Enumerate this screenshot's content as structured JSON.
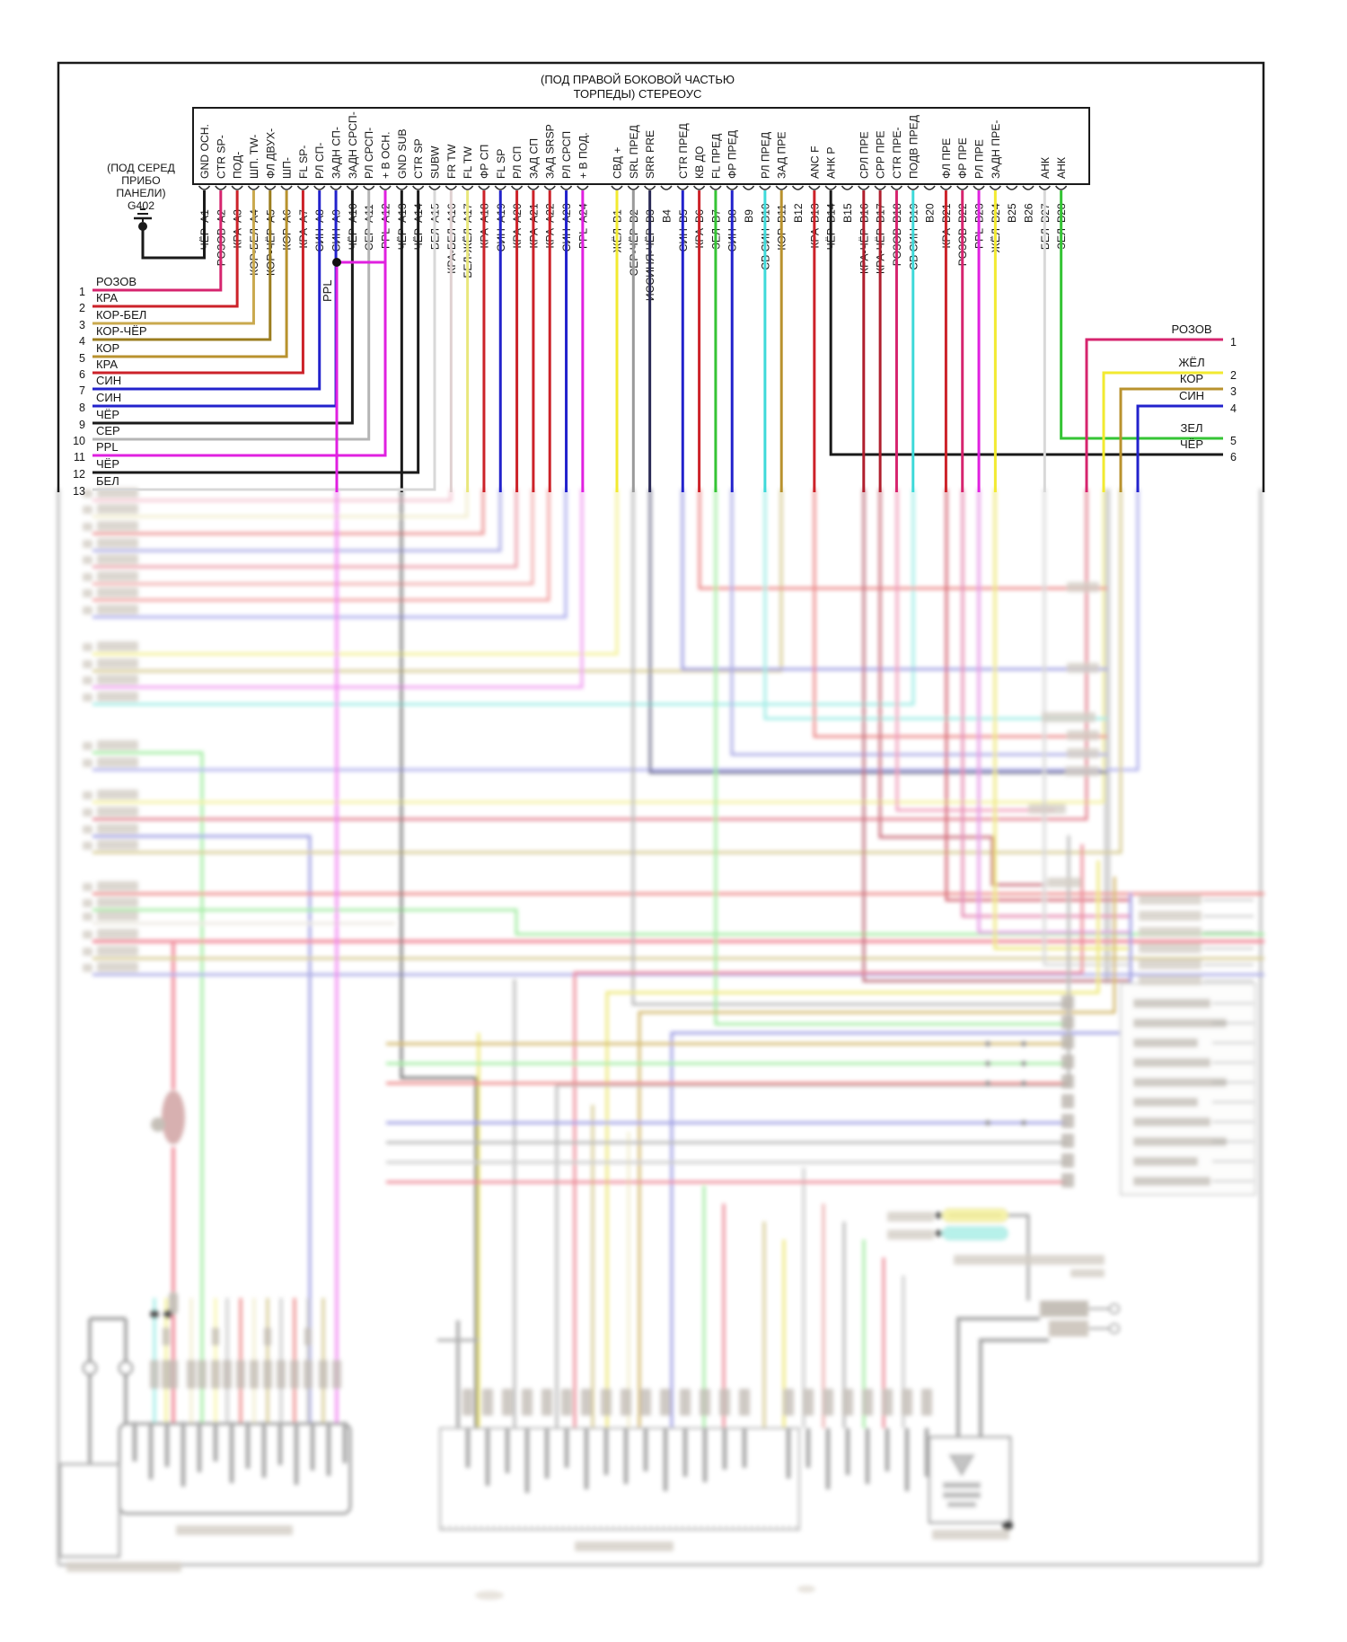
{
  "header": {
    "line1": "(ПОД ПРАВОЙ БОКОВОЙ ЧАСТЬЮ",
    "line2": "ТОРПЕДЫ) СТЕРЕОУС"
  },
  "ground_module": {
    "lines": [
      "(ПОД СЕРЕД",
      "ПРИБО",
      "ПАНЕЛИ)",
      "G402"
    ]
  },
  "ppl_branch_label": "PPL",
  "palette": {
    "ЧЁР": "#1a1a1a",
    "РОЗОВ": "#d6246e",
    "КРА": "#cc2229",
    "КОР-БЕЛ": "#c9a94e",
    "КОР-ЧЁР": "#9b7d1f",
    "КОР": "#b8922e",
    "СИН": "#2222cc",
    "СЕР": "#b5b5b5",
    "PPL": "#e020e0",
    "БЕЛ": "#d8d8d8",
    "КРА-БЕЛ": "#dfd0d0",
    "БЕЛ-ЖЁЛ": "#e9e77c",
    "ЖЁЛ": "#f2ea30",
    "СЕР-ЧЁР": "#9a9a9a",
    "ИССИНЯ-ЧЁР": "#2a2a55",
    "ЗЕЛ": "#35c435",
    "СВ СИН": "#3fd9d9",
    "КРА-ЧЁР": "#b01f2e"
  },
  "connector": {
    "a_pins": [
      {
        "id": "A1",
        "signal": "GND ОСН.",
        "wire": "ЧЁР"
      },
      {
        "id": "A2",
        "signal": "CTR SP-",
        "wire": "РОЗОВ"
      },
      {
        "id": "A3",
        "signal": "ПОД-",
        "wire": "КРА"
      },
      {
        "id": "A4",
        "signal": "ШП. TW-",
        "wire": "КОР-БЕЛ"
      },
      {
        "id": "A5",
        "signal": "ФЛ ДВУХ-",
        "wire": "КОР-ЧЁР"
      },
      {
        "id": "A6",
        "signal": "ШП-",
        "wire": "КОР"
      },
      {
        "id": "A7",
        "signal": "FL SP-",
        "wire": "КРА"
      },
      {
        "id": "A8",
        "signal": "РЛ СП-",
        "wire": "СИН"
      },
      {
        "id": "A9",
        "signal": "ЗАДН СП-",
        "wire": "СИН"
      },
      {
        "id": "A10",
        "signal": "ЗАДН СРСП-",
        "wire": "ЧЁР"
      },
      {
        "id": "A11",
        "signal": "РЛ СРСП-",
        "wire": "СЕР"
      },
      {
        "id": "A12",
        "signal": "+ В ОСН.",
        "wire": "PPL"
      },
      {
        "id": "A13",
        "signal": "GND SUB",
        "wire": "ЧЁР"
      },
      {
        "id": "A14",
        "signal": "CTR SP",
        "wire": "ЧЁР"
      },
      {
        "id": "A15",
        "signal": "SUBW",
        "wire": "БЕЛ"
      },
      {
        "id": "A16",
        "signal": "FR TW",
        "wire": "КРА-БЕЛ"
      },
      {
        "id": "A17",
        "signal": "FL TW",
        "wire": "БЕЛ-ЖЁЛ"
      },
      {
        "id": "A18",
        "signal": "ФР СП",
        "wire": "КРА"
      },
      {
        "id": "A19",
        "signal": "FL SP",
        "wire": "СИН"
      },
      {
        "id": "A20",
        "signal": "РЛ СП",
        "wire": "КРА"
      },
      {
        "id": "A21",
        "signal": "ЗАД СП",
        "wire": "КРА"
      },
      {
        "id": "A22",
        "signal": "ЗАД SRSP",
        "wire": "КРА"
      },
      {
        "id": "A23",
        "signal": "РЛ СРСП",
        "wire": "СИН"
      },
      {
        "id": "A24",
        "signal": "+ В ПОД.",
        "wire": "PPL"
      }
    ],
    "b_pins": [
      {
        "id": "B1",
        "signal": "СВД +",
        "wire": "ЖЁЛ"
      },
      {
        "id": "B2",
        "signal": "SRL ПРЕД",
        "wire": "СЕР-ЧЁР"
      },
      {
        "id": "B3",
        "signal": "SRR PRE",
        "wire": "ИССИНЯ-ЧЁР"
      },
      {
        "id": "B4",
        "signal": "",
        "wire": ""
      },
      {
        "id": "B5",
        "signal": "CTR ПРЕД",
        "wire": "СИН"
      },
      {
        "id": "B6",
        "signal": "КВ ДО",
        "wire": "КРА"
      },
      {
        "id": "B7",
        "signal": "FL ПРЕД",
        "wire": "ЗЕЛ"
      },
      {
        "id": "B8",
        "signal": "ФР ПРЕД",
        "wire": "СИН"
      },
      {
        "id": "B9",
        "signal": "",
        "wire": ""
      },
      {
        "id": "B10",
        "signal": "РЛ ПРЕД",
        "wire": "СВ СИН"
      },
      {
        "id": "B11",
        "signal": "ЗАД ПРЕ",
        "wire": "КОР"
      },
      {
        "id": "B12",
        "signal": "",
        "wire": ""
      },
      {
        "id": "B13",
        "signal": "ANC F",
        "wire": "КРА"
      },
      {
        "id": "B14",
        "signal": "АНК Р",
        "wire": "ЧЁР"
      },
      {
        "id": "B15",
        "signal": "",
        "wire": ""
      },
      {
        "id": "B16",
        "signal": "СРЛ ПРЕ",
        "wire": "КРА-ЧЁР"
      },
      {
        "id": "B17",
        "signal": "СРР ПРЕ",
        "wire": "КРА-ЧЁР"
      },
      {
        "id": "B18",
        "signal": "CTR ПРЕ-",
        "wire": "РОЗОВ"
      },
      {
        "id": "B19",
        "signal": "ПОДВ ПРЕД",
        "wire": "СВ СИН"
      },
      {
        "id": "B20",
        "signal": "",
        "wire": ""
      },
      {
        "id": "B21",
        "signal": "ФЛ ПРЕ",
        "wire": "КРА"
      },
      {
        "id": "B22",
        "signal": "ФР ПРЕ",
        "wire": "РОЗОВ"
      },
      {
        "id": "B23",
        "signal": "РЛ ПРЕ",
        "wire": "PPL"
      },
      {
        "id": "B24",
        "signal": "ЗАДН ПРЕ-",
        "wire": "ЖЁЛ"
      },
      {
        "id": "B25",
        "signal": "",
        "wire": ""
      },
      {
        "id": "B26",
        "signal": "",
        "wire": ""
      },
      {
        "id": "B27",
        "signal": "АНК",
        "wire": "БЕЛ"
      },
      {
        "id": "B28",
        "signal": "АНК",
        "wire": "ЗЕЛ"
      }
    ]
  },
  "left_rows": [
    {
      "n": "1",
      "label": "РОЗОВ"
    },
    {
      "n": "2",
      "label": "КРА"
    },
    {
      "n": "3",
      "label": "КОР-БЕЛ"
    },
    {
      "n": "4",
      "label": "КОР-ЧЁР"
    },
    {
      "n": "5",
      "label": "КОР"
    },
    {
      "n": "6",
      "label": "КРА"
    },
    {
      "n": "7",
      "label": "СИН"
    },
    {
      "n": "8",
      "label": "СИН"
    },
    {
      "n": "9",
      "label": "ЧЁР"
    },
    {
      "n": "10",
      "label": "СЕР"
    },
    {
      "n": "11",
      "label": "PPL"
    },
    {
      "n": "12",
      "label": "ЧЁР"
    },
    {
      "n": "13",
      "label": "БЕЛ"
    }
  ],
  "right_rows": [
    {
      "n": "1",
      "label": "РОЗОВ"
    },
    {
      "n": "2",
      "label": "ЖЁЛ"
    },
    {
      "n": "3",
      "label": "КОР"
    },
    {
      "n": "4",
      "label": "СИН"
    },
    {
      "n": "5",
      "label": "ЗЕЛ"
    },
    {
      "n": "6",
      "label": "ЧЁР"
    }
  ]
}
